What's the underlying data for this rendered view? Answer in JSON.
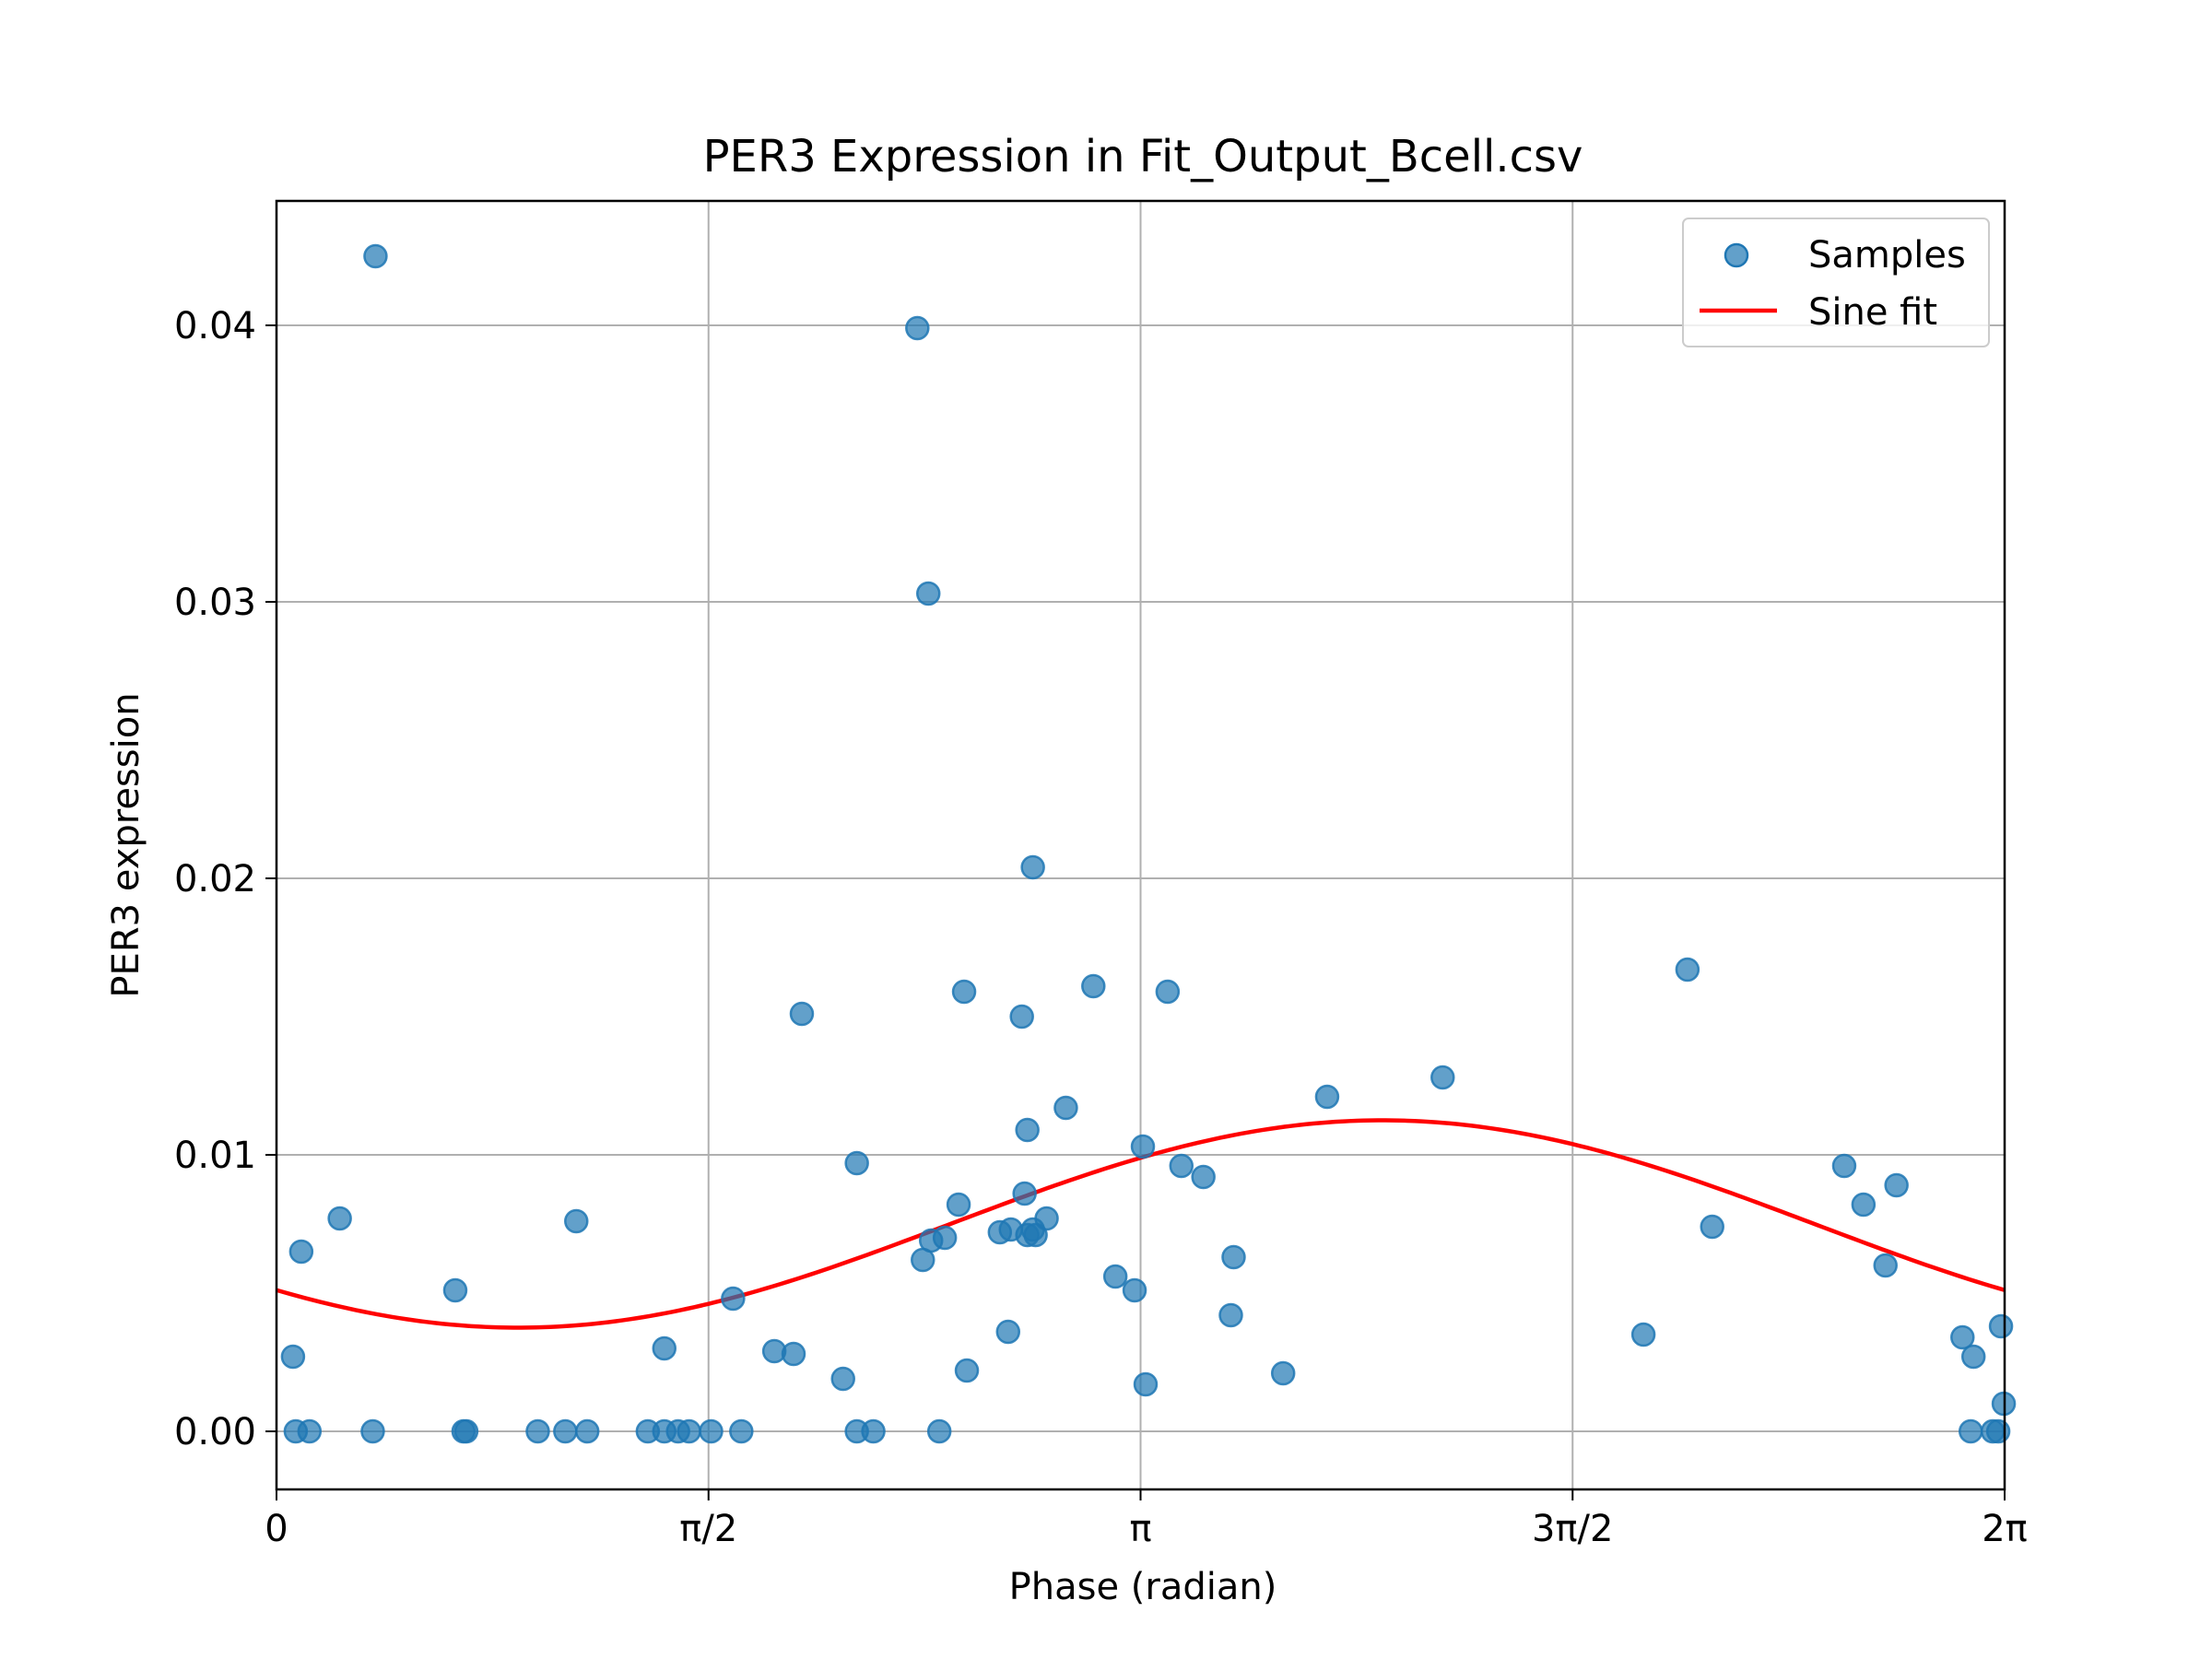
{
  "chart_data": {
    "type": "scatter",
    "title": "PER3 Expression in Fit_Output_Bcell.csv",
    "xlabel": "Phase (radian)",
    "ylabel": "PER3 expression",
    "xlim": [
      0,
      6.2832
    ],
    "ylim": [
      -0.0021,
      0.0445
    ],
    "grid": true,
    "legend_position": "top-right",
    "x_ticks": [
      {
        "value": 0,
        "label": "0"
      },
      {
        "value": 1.5708,
        "label": "π/2"
      },
      {
        "value": 3.1416,
        "label": "π"
      },
      {
        "value": 4.7124,
        "label": "3π/2"
      },
      {
        "value": 6.2832,
        "label": "2π"
      }
    ],
    "y_ticks": [
      {
        "value": 0.0,
        "label": "0.00"
      },
      {
        "value": 0.01,
        "label": "0.01"
      },
      {
        "value": 0.02,
        "label": "0.02"
      },
      {
        "value": 0.03,
        "label": "0.03"
      },
      {
        "value": 0.04,
        "label": "0.04"
      }
    ],
    "series": [
      {
        "name": "Samples",
        "kind": "scatter",
        "color": "#1f77b4",
        "opacity": 0.7,
        "points": [
          {
            "x": 0.06,
            "y": 0.0027
          },
          {
            "x": 0.09,
            "y": 0.0065
          },
          {
            "x": 0.23,
            "y": 0.0077
          },
          {
            "x": 0.36,
            "y": 0.0425
          },
          {
            "x": 0.65,
            "y": 0.0051
          },
          {
            "x": 1.09,
            "y": 0.0076
          },
          {
            "x": 1.41,
            "y": 0.003
          },
          {
            "x": 1.66,
            "y": 0.0048
          },
          {
            "x": 1.81,
            "y": 0.0029
          },
          {
            "x": 1.88,
            "y": 0.0028
          },
          {
            "x": 1.91,
            "y": 0.0151
          },
          {
            "x": 2.06,
            "y": 0.0019
          },
          {
            "x": 2.11,
            "y": 0.0097
          },
          {
            "x": 2.33,
            "y": 0.0399
          },
          {
            "x": 2.35,
            "y": 0.0062
          },
          {
            "x": 2.37,
            "y": 0.0303
          },
          {
            "x": 2.38,
            "y": 0.0069
          },
          {
            "x": 2.43,
            "y": 0.007
          },
          {
            "x": 2.48,
            "y": 0.0082
          },
          {
            "x": 2.5,
            "y": 0.0159
          },
          {
            "x": 2.51,
            "y": 0.0022
          },
          {
            "x": 2.63,
            "y": 0.0072
          },
          {
            "x": 2.66,
            "y": 0.0036
          },
          {
            "x": 2.67,
            "y": 0.0073
          },
          {
            "x": 2.71,
            "y": 0.015
          },
          {
            "x": 2.72,
            "y": 0.0086
          },
          {
            "x": 2.73,
            "y": 0.0109
          },
          {
            "x": 2.73,
            "y": 0.0071
          },
          {
            "x": 2.75,
            "y": 0.0073
          },
          {
            "x": 2.75,
            "y": 0.0204
          },
          {
            "x": 2.76,
            "y": 0.0071
          },
          {
            "x": 2.8,
            "y": 0.0077
          },
          {
            "x": 2.87,
            "y": 0.0117
          },
          {
            "x": 2.97,
            "y": 0.0161
          },
          {
            "x": 3.05,
            "y": 0.0056
          },
          {
            "x": 3.12,
            "y": 0.0051
          },
          {
            "x": 3.15,
            "y": 0.0103
          },
          {
            "x": 3.16,
            "y": 0.0017
          },
          {
            "x": 3.24,
            "y": 0.0159
          },
          {
            "x": 3.29,
            "y": 0.0096
          },
          {
            "x": 3.37,
            "y": 0.0092
          },
          {
            "x": 3.47,
            "y": 0.0042
          },
          {
            "x": 3.48,
            "y": 0.0063
          },
          {
            "x": 3.66,
            "y": 0.0021
          },
          {
            "x": 3.82,
            "y": 0.0121
          },
          {
            "x": 4.24,
            "y": 0.0128
          },
          {
            "x": 4.97,
            "y": 0.0035
          },
          {
            "x": 5.13,
            "y": 0.0167
          },
          {
            "x": 5.22,
            "y": 0.0074
          },
          {
            "x": 5.7,
            "y": 0.0096
          },
          {
            "x": 5.77,
            "y": 0.0082
          },
          {
            "x": 5.85,
            "y": 0.006
          },
          {
            "x": 5.89,
            "y": 0.0089
          },
          {
            "x": 6.13,
            "y": 0.0034
          },
          {
            "x": 6.17,
            "y": 0.0027
          },
          {
            "x": 6.27,
            "y": 0.0038
          },
          {
            "x": 6.28,
            "y": 0.001
          },
          {
            "x": 0.07,
            "y": 0.0
          },
          {
            "x": 0.12,
            "y": 0.0
          },
          {
            "x": 0.35,
            "y": 0.0
          },
          {
            "x": 0.68,
            "y": 0.0
          },
          {
            "x": 0.69,
            "y": 0.0
          },
          {
            "x": 0.95,
            "y": 0.0
          },
          {
            "x": 1.05,
            "y": 0.0
          },
          {
            "x": 1.13,
            "y": 0.0
          },
          {
            "x": 1.35,
            "y": 0.0
          },
          {
            "x": 1.41,
            "y": 0.0
          },
          {
            "x": 1.46,
            "y": 0.0
          },
          {
            "x": 1.5,
            "y": 0.0
          },
          {
            "x": 1.58,
            "y": 0.0
          },
          {
            "x": 1.69,
            "y": 0.0
          },
          {
            "x": 2.11,
            "y": 0.0
          },
          {
            "x": 2.17,
            "y": 0.0
          },
          {
            "x": 2.41,
            "y": 0.0
          },
          {
            "x": 6.16,
            "y": 0.0
          },
          {
            "x": 6.24,
            "y": 0.0
          },
          {
            "x": 6.26,
            "y": 0.0
          }
        ]
      },
      {
        "name": "Sine fit",
        "kind": "line",
        "color": "#ff0000",
        "model": "y = c + a*sin(x + phi)",
        "a": 0.00375,
        "c": 0.0075,
        "phi": -2.45
      }
    ]
  }
}
